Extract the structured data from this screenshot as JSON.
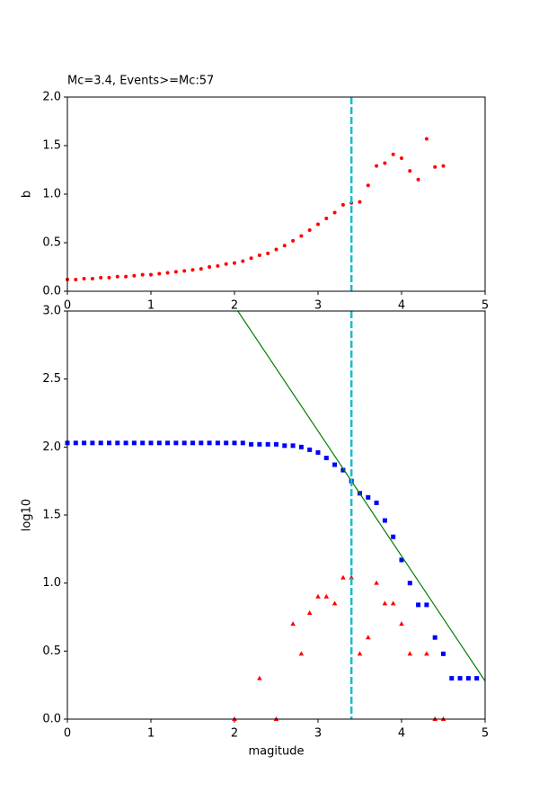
{
  "chart_data": [
    {
      "type": "scatter",
      "title": "Mc=3.4, Events>=Mc:57",
      "y_label": "b",
      "xlim": [
        0,
        5
      ],
      "xticks": [
        0,
        1,
        2,
        3,
        4,
        5
      ],
      "ylim": [
        0,
        2
      ],
      "yticks": [
        {
          "value": 0,
          "label": "0.0"
        },
        {
          "value": 0.5,
          "label": "0.5"
        },
        {
          "value": 1,
          "label": "1.0"
        },
        {
          "value": 1.5,
          "label": "1.5"
        },
        {
          "value": 2,
          "label": "2.0"
        }
      ],
      "mc_line": 3.4,
      "mc_color": "#17becf",
      "series": [
        {
          "marker": "circle",
          "color": "#ff0000",
          "x": [
            0,
            0.1,
            0.2,
            0.3,
            0.4,
            0.5,
            0.6,
            0.7,
            0.8,
            0.9,
            1.0,
            1.1,
            1.2,
            1.3,
            1.4,
            1.5,
            1.6,
            1.7,
            1.8,
            1.9,
            2.0,
            2.1,
            2.2,
            2.3,
            2.4,
            2.5,
            2.6,
            2.7,
            2.8,
            2.9,
            3.0,
            3.1,
            3.2,
            3.3,
            3.4,
            3.5,
            3.6,
            3.7,
            3.8,
            3.9,
            4.0,
            4.1,
            4.2,
            4.3,
            4.4,
            4.5
          ],
          "values": [
            0.12,
            0.12,
            0.13,
            0.13,
            0.14,
            0.14,
            0.15,
            0.15,
            0.16,
            0.17,
            0.17,
            0.18,
            0.19,
            0.2,
            0.21,
            0.22,
            0.23,
            0.25,
            0.26,
            0.28,
            0.29,
            0.31,
            0.34,
            0.37,
            0.39,
            0.43,
            0.47,
            0.52,
            0.57,
            0.63,
            0.69,
            0.75,
            0.81,
            0.89,
            0.91,
            0.92,
            1.09,
            1.29,
            1.32,
            1.41,
            1.37,
            1.24,
            1.15,
            1.57,
            1.28,
            1.29
          ]
        }
      ]
    },
    {
      "type": "scatter",
      "x_label": "magitude",
      "y_label": "log10",
      "xlim": [
        0,
        5
      ],
      "xticks": [
        0,
        1,
        2,
        3,
        4,
        5
      ],
      "ylim": [
        0,
        3
      ],
      "yticks": [
        {
          "value": 0,
          "label": "0.0"
        },
        {
          "value": 0.5,
          "label": "0.5"
        },
        {
          "value": 1,
          "label": "1.0"
        },
        {
          "value": 1.5,
          "label": "1.5"
        },
        {
          "value": 2,
          "label": "2.0"
        },
        {
          "value": 2.5,
          "label": "2.5"
        },
        {
          "value": 3,
          "label": "3.0"
        }
      ],
      "mc_line": 3.4,
      "mc_color": "#17becf",
      "series": [
        {
          "marker": "square",
          "color": "#0000ff",
          "x": [
            0,
            0.1,
            0.2,
            0.3,
            0.4,
            0.5,
            0.6,
            0.7,
            0.8,
            0.9,
            1.0,
            1.1,
            1.2,
            1.3,
            1.4,
            1.5,
            1.6,
            1.7,
            1.8,
            1.9,
            2.0,
            2.1,
            2.2,
            2.3,
            2.4,
            2.5,
            2.6,
            2.7,
            2.8,
            2.9,
            3.0,
            3.1,
            3.2,
            3.3,
            3.4,
            3.5,
            3.6,
            3.7,
            3.8,
            3.9,
            4.0,
            4.1,
            4.2,
            4.3,
            4.4,
            4.5,
            4.6,
            4.7,
            4.8,
            4.9
          ],
          "values": [
            2.03,
            2.03,
            2.03,
            2.03,
            2.03,
            2.03,
            2.03,
            2.03,
            2.03,
            2.03,
            2.03,
            2.03,
            2.03,
            2.03,
            2.03,
            2.03,
            2.03,
            2.03,
            2.03,
            2.03,
            2.03,
            2.03,
            2.02,
            2.02,
            2.02,
            2.02,
            2.01,
            2.01,
            2.0,
            1.98,
            1.96,
            1.92,
            1.87,
            1.83,
            1.75,
            1.66,
            1.63,
            1.59,
            1.46,
            1.34,
            1.17,
            1.0,
            0.84,
            0.84,
            0.6,
            0.48,
            0.3,
            0.3,
            0.3,
            0.3
          ]
        },
        {
          "marker": "triangle",
          "color": "#ff0000",
          "x": [
            2.0,
            2.3,
            2.5,
            2.7,
            2.8,
            2.9,
            3.0,
            3.1,
            3.2,
            3.3,
            3.4,
            3.5,
            3.6,
            3.7,
            3.8,
            3.9,
            4.0,
            4.1,
            4.3,
            4.4,
            4.5
          ],
          "values": [
            0,
            0.3,
            0,
            0.7,
            0.48,
            0.78,
            0.9,
            0.9,
            0.85,
            1.04,
            1.04,
            0.48,
            0.6,
            1.0,
            0.85,
            0.85,
            0.7,
            0.48,
            0.48,
            0,
            0
          ]
        },
        {
          "marker": "line",
          "color": "#008000",
          "x": [
            2.04,
            5
          ],
          "values": [
            3.0,
            0.28
          ]
        }
      ]
    }
  ]
}
